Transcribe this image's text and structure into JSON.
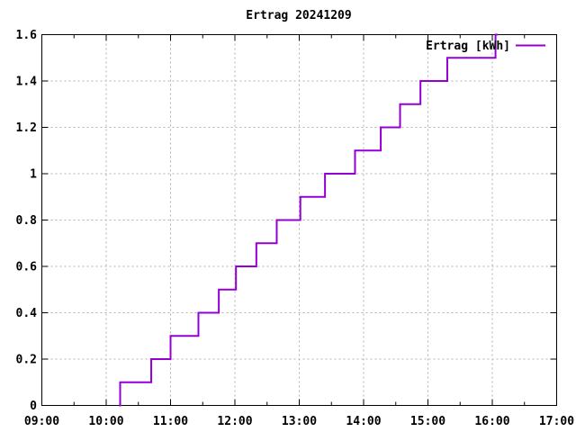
{
  "title": "Ertrag 20241209",
  "legend": {
    "label": "Ertrag [kWh]"
  },
  "colors": {
    "series": "#9400d3",
    "grid": "#b0b0b0",
    "axis": "#000000",
    "text": "#000000",
    "background": "#ffffff"
  },
  "axes": {
    "x": {
      "tick_labels": [
        "09:00",
        "10:00",
        "11:00",
        "12:00",
        "13:00",
        "14:00",
        "15:00",
        "16:00",
        "17:00"
      ],
      "minor_ticks_hours": [
        9.5,
        10.5,
        11.5,
        12.5,
        13.5,
        14.5,
        15.5,
        16.5
      ]
    },
    "y": {
      "ticks": [
        {
          "v": 0.0,
          "label": "0"
        },
        {
          "v": 0.2,
          "label": "0.2"
        },
        {
          "v": 0.4,
          "label": "0.4"
        },
        {
          "v": 0.6,
          "label": "0.6"
        },
        {
          "v": 0.8,
          "label": "0.8"
        },
        {
          "v": 1.0,
          "label": "1"
        },
        {
          "v": 1.2,
          "label": "1.2"
        },
        {
          "v": 1.4,
          "label": "1.4"
        },
        {
          "v": 1.6,
          "label": "1.6"
        }
      ]
    }
  },
  "chart_data": {
    "type": "line",
    "step": "post",
    "title": "Ertrag 20241209",
    "xlabel": "",
    "ylabel": "",
    "xlim": [
      "09:00",
      "17:00"
    ],
    "ylim": [
      0,
      1.6
    ],
    "grid": true,
    "legend_position": "top-right",
    "series": [
      {
        "name": "Ertrag [kWh]",
        "color": "#9400d3",
        "points": [
          [
            "10:12",
            0.0
          ],
          [
            "10:13",
            0.1
          ],
          [
            "10:42",
            0.2
          ],
          [
            "11:00",
            0.3
          ],
          [
            "11:26",
            0.4
          ],
          [
            "11:45",
            0.5
          ],
          [
            "12:01",
            0.6
          ],
          [
            "12:20",
            0.7
          ],
          [
            "12:39",
            0.8
          ],
          [
            "13:01",
            0.9
          ],
          [
            "13:24",
            1.0
          ],
          [
            "13:52",
            1.1
          ],
          [
            "14:16",
            1.2
          ],
          [
            "14:34",
            1.3
          ],
          [
            "14:53",
            1.4
          ],
          [
            "15:18",
            1.5
          ],
          [
            "16:03",
            1.6
          ],
          [
            "16:05",
            1.6
          ]
        ]
      }
    ]
  }
}
